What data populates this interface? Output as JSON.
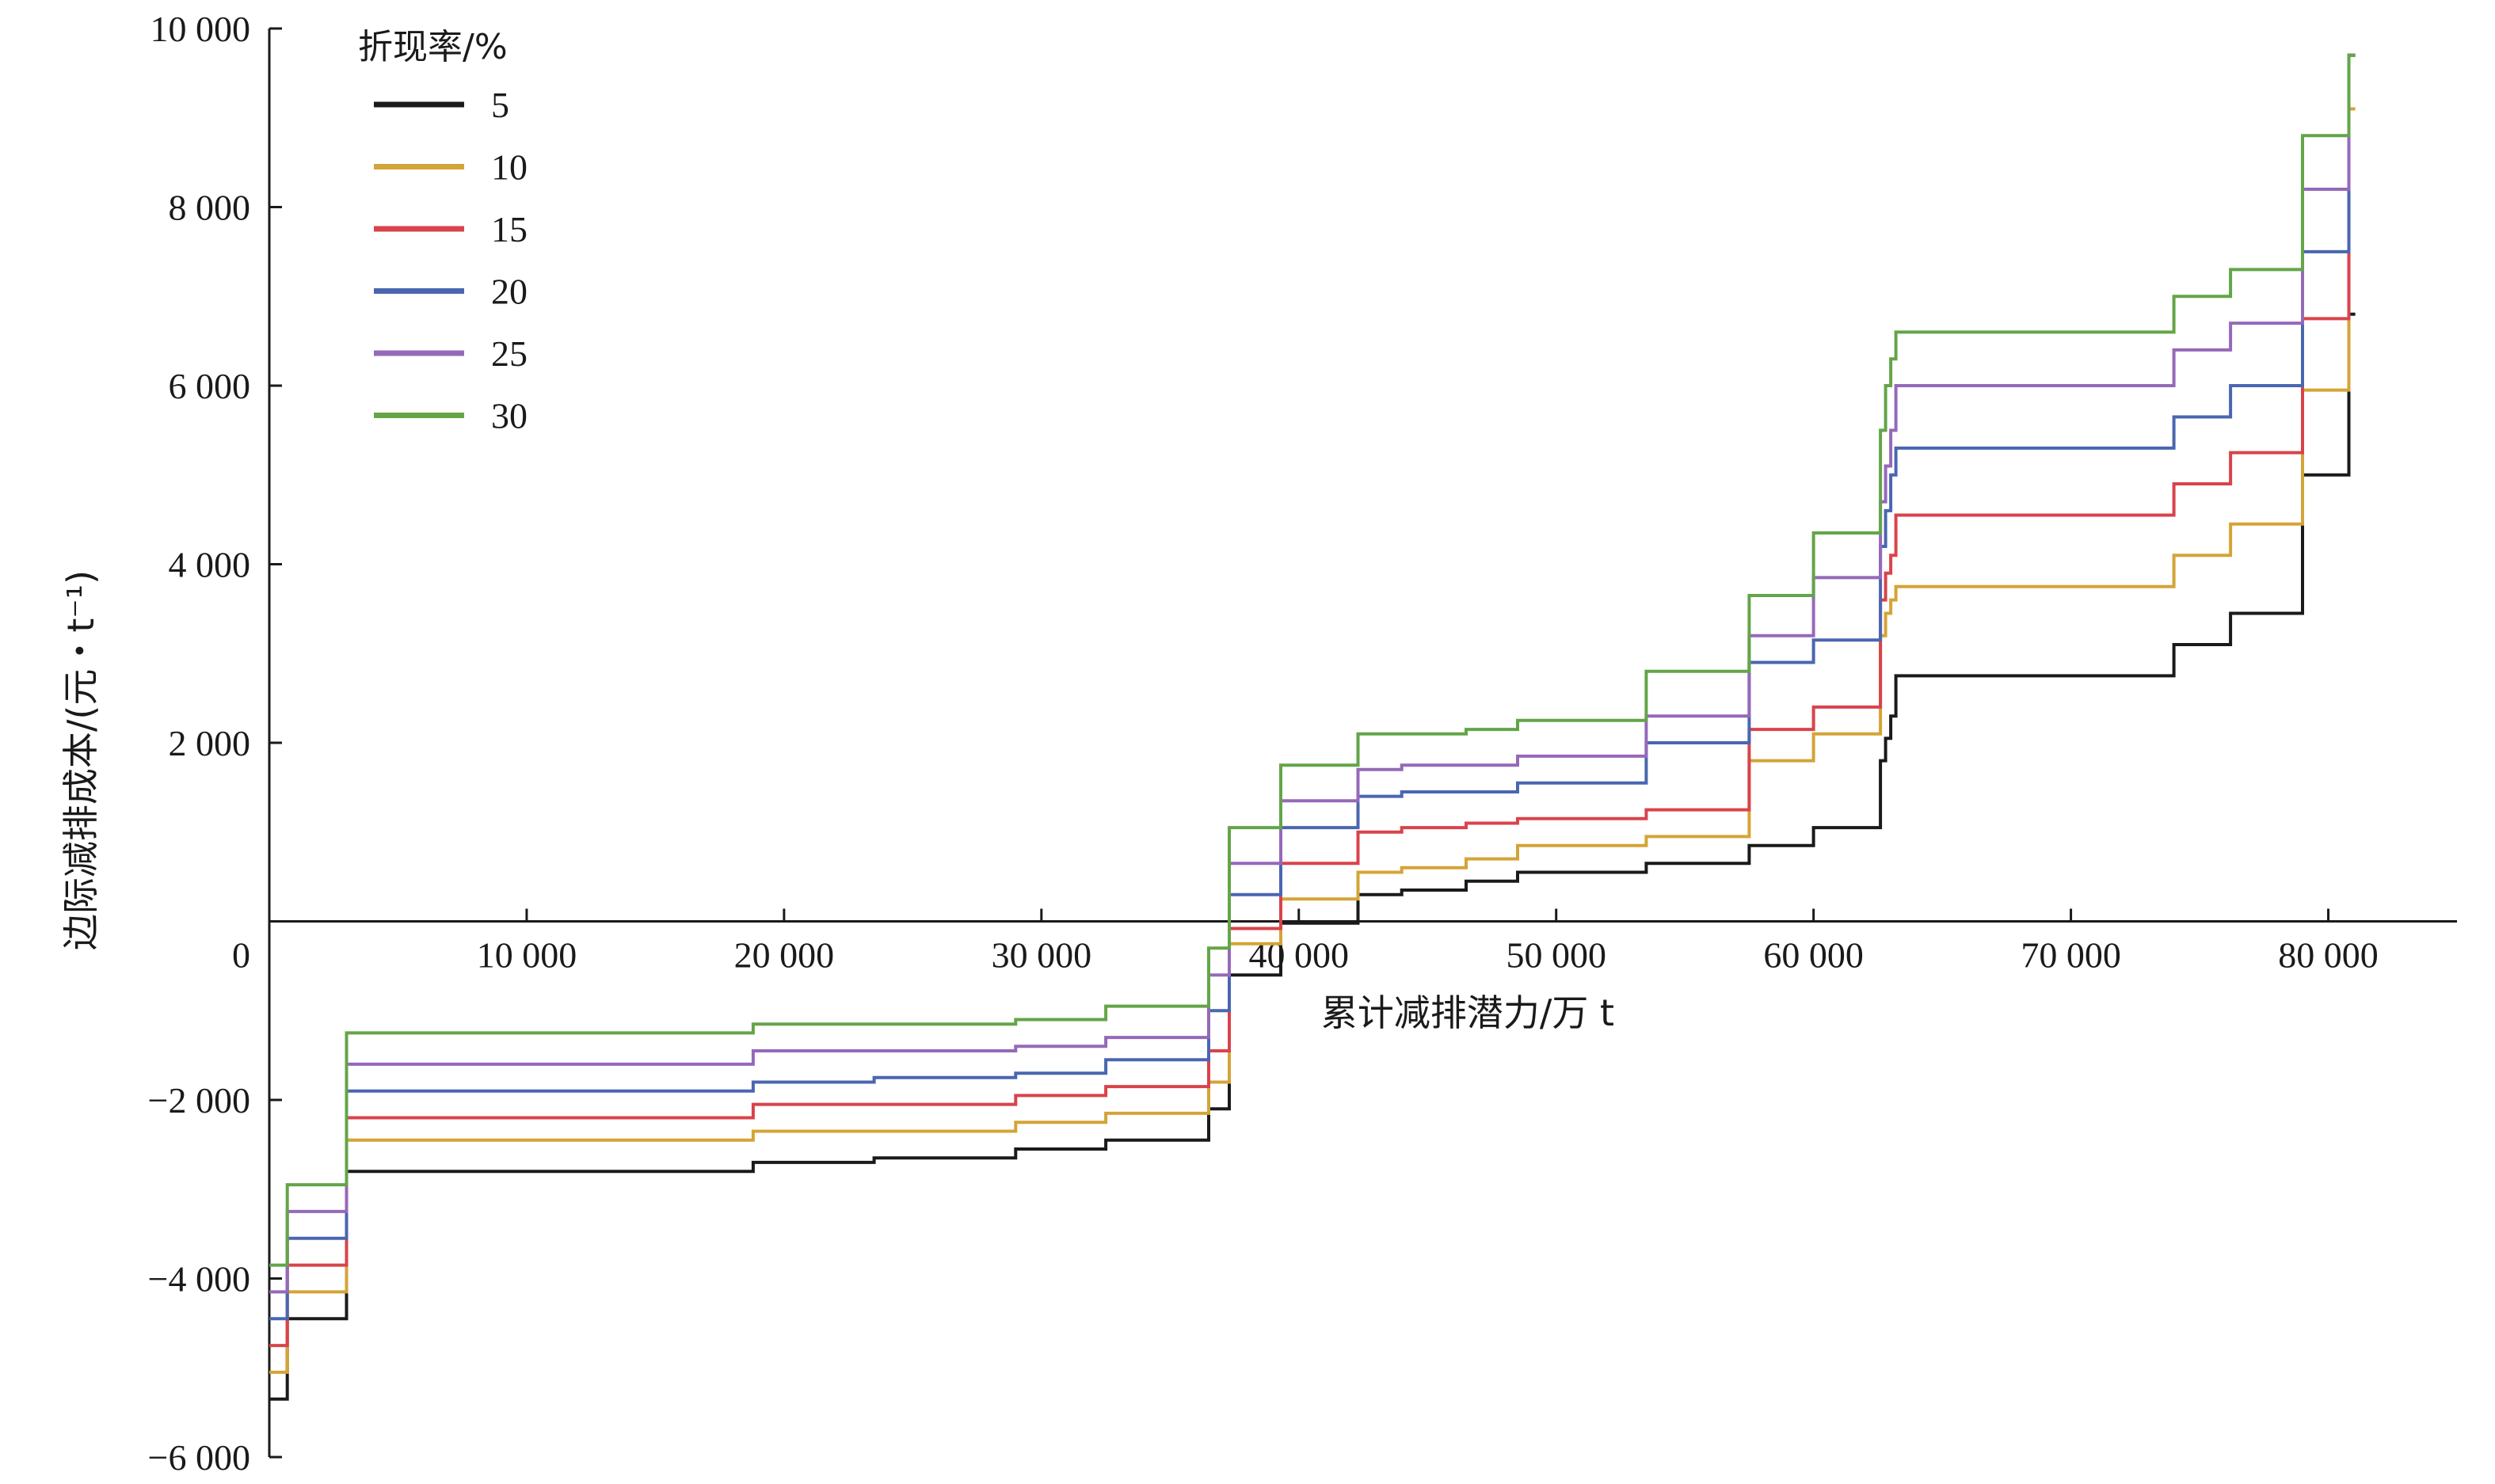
{
  "chart_data": {
    "type": "line",
    "step": true,
    "xlabel": "累计减排潜力/万 t",
    "ylabel": "边际减排成本/(元・t⁻¹)",
    "xlim": [
      0,
      85000
    ],
    "ylim": [
      -6000,
      10000
    ],
    "x_ticks": [
      {
        "value": 10000,
        "label": "10 000"
      },
      {
        "value": 20000,
        "label": "20 000"
      },
      {
        "value": 30000,
        "label": "30 000"
      },
      {
        "value": 40000,
        "label": "40 000"
      },
      {
        "value": 50000,
        "label": "50 000"
      },
      {
        "value": 60000,
        "label": "60 000"
      },
      {
        "value": 70000,
        "label": "70 000"
      },
      {
        "value": 80000,
        "label": "80 000"
      }
    ],
    "y_ticks": [
      {
        "value": 10000,
        "label": "10 000"
      },
      {
        "value": 8000,
        "label": "8 000"
      },
      {
        "value": 6000,
        "label": "6 000"
      },
      {
        "value": 4000,
        "label": "4 000"
      },
      {
        "value": 2000,
        "label": "2 000"
      },
      {
        "value": -2000,
        "label": "−2 000"
      },
      {
        "value": -4000,
        "label": "−4 000"
      },
      {
        "value": -6000,
        "label": "−6 000"
      }
    ],
    "origin_label": "0",
    "legend": {
      "title": "折现率/%",
      "position": "top-left"
    },
    "breaks": [
      0,
      700,
      3000,
      18800,
      23500,
      29000,
      32500,
      36500,
      37300,
      39300,
      42300,
      44000,
      46500,
      48500,
      53500,
      57500,
      60000,
      62600,
      62800,
      63000,
      63200,
      74000,
      76200,
      79000,
      80800
    ],
    "series": [
      {
        "name": "5",
        "color": "#1a1a1a",
        "values": [
          -5350,
          -4450,
          -2800,
          -2700,
          -2650,
          -2550,
          -2450,
          -2100,
          -600,
          -20,
          300,
          350,
          450,
          550,
          650,
          850,
          1050,
          1800,
          2050,
          2300,
          2750,
          3100,
          3450,
          5000,
          6800
        ]
      },
      {
        "name": "10",
        "color": "#d4a437",
        "values": [
          -5050,
          -4150,
          -2450,
          -2350,
          -2350,
          -2250,
          -2150,
          -1800,
          -250,
          250,
          550,
          600,
          700,
          850,
          950,
          1800,
          2100,
          3200,
          3450,
          3600,
          3750,
          4100,
          4450,
          5950,
          9100
        ]
      },
      {
        "name": "15",
        "color": "#d9434b",
        "values": [
          -4750,
          -3850,
          -2200,
          -2050,
          -2050,
          -1950,
          -1850,
          -1450,
          -80,
          650,
          1000,
          1050,
          1100,
          1150,
          1250,
          2150,
          2400,
          3600,
          3900,
          4100,
          4550,
          4900,
          5250,
          6750,
          9700
        ]
      },
      {
        "name": "20",
        "color": "#4a66b1",
        "values": [
          -4450,
          -3550,
          -1900,
          -1800,
          -1750,
          -1700,
          -1550,
          -1000,
          300,
          1050,
          1400,
          1450,
          1450,
          1550,
          2000,
          2900,
          3150,
          4200,
          4600,
          5000,
          5300,
          5650,
          6000,
          7500,
          9700
        ]
      },
      {
        "name": "25",
        "color": "#9569b9",
        "values": [
          -4150,
          -3250,
          -1600,
          -1450,
          -1450,
          -1400,
          -1300,
          -600,
          650,
          1350,
          1700,
          1750,
          1750,
          1850,
          2300,
          3200,
          3850,
          4700,
          5100,
          5500,
          6000,
          6400,
          6700,
          8200,
          9700
        ]
      },
      {
        "name": "30",
        "color": "#63a548",
        "values": [
          -3850,
          -2950,
          -1250,
          -1150,
          -1150,
          -1100,
          -950,
          -300,
          1050,
          1750,
          2100,
          2100,
          2150,
          2250,
          2800,
          3650,
          4350,
          5500,
          6000,
          6300,
          6600,
          7000,
          7300,
          8800,
          9700
        ]
      }
    ]
  }
}
